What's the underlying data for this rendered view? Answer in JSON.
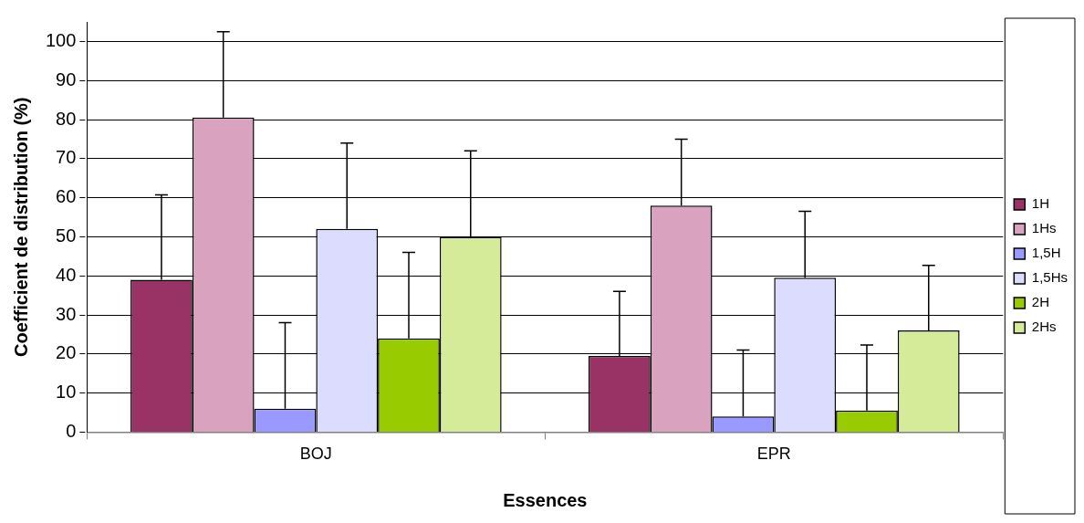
{
  "chart_data": {
    "type": "bar",
    "xlabel": "Essences",
    "ylabel": "Coefficient de distribution (%)",
    "categories": [
      "BOJ",
      "EPR"
    ],
    "series": [
      {
        "name": "1H",
        "color": "#993366",
        "values": [
          39,
          19.5
        ],
        "errors": [
          [
            39,
            60.7
          ],
          [
            19.5,
            36
          ]
        ]
      },
      {
        "name": "1Hs",
        "color": "#d9a3bf",
        "values": [
          80.5,
          58
        ],
        "errors": [
          [
            80.5,
            102.5
          ],
          [
            58,
            75
          ]
        ]
      },
      {
        "name": "1,5H",
        "color": "#9999ff",
        "values": [
          6,
          4
        ],
        "errors": [
          [
            6,
            28
          ],
          [
            4,
            21
          ]
        ]
      },
      {
        "name": "1,5Hs",
        "color": "#dcdcff",
        "values": [
          52,
          39.5
        ],
        "errors": [
          [
            52,
            74
          ],
          [
            39.5,
            56.5
          ]
        ]
      },
      {
        "name": "2H",
        "color": "#99cc00",
        "values": [
          24,
          5.5
        ],
        "errors": [
          [
            24,
            46
          ],
          [
            5.5,
            22.3
          ]
        ]
      },
      {
        "name": "2Hs",
        "color": "#d6eb99",
        "values": [
          50,
          26
        ],
        "errors": [
          [
            50,
            72
          ],
          [
            26,
            42.7
          ]
        ]
      }
    ],
    "ylim": [
      0,
      105
    ],
    "yticks": [
      0,
      10,
      20,
      30,
      40,
      50,
      60,
      70,
      80,
      90,
      100
    ],
    "grid": "y",
    "legend": "right"
  }
}
